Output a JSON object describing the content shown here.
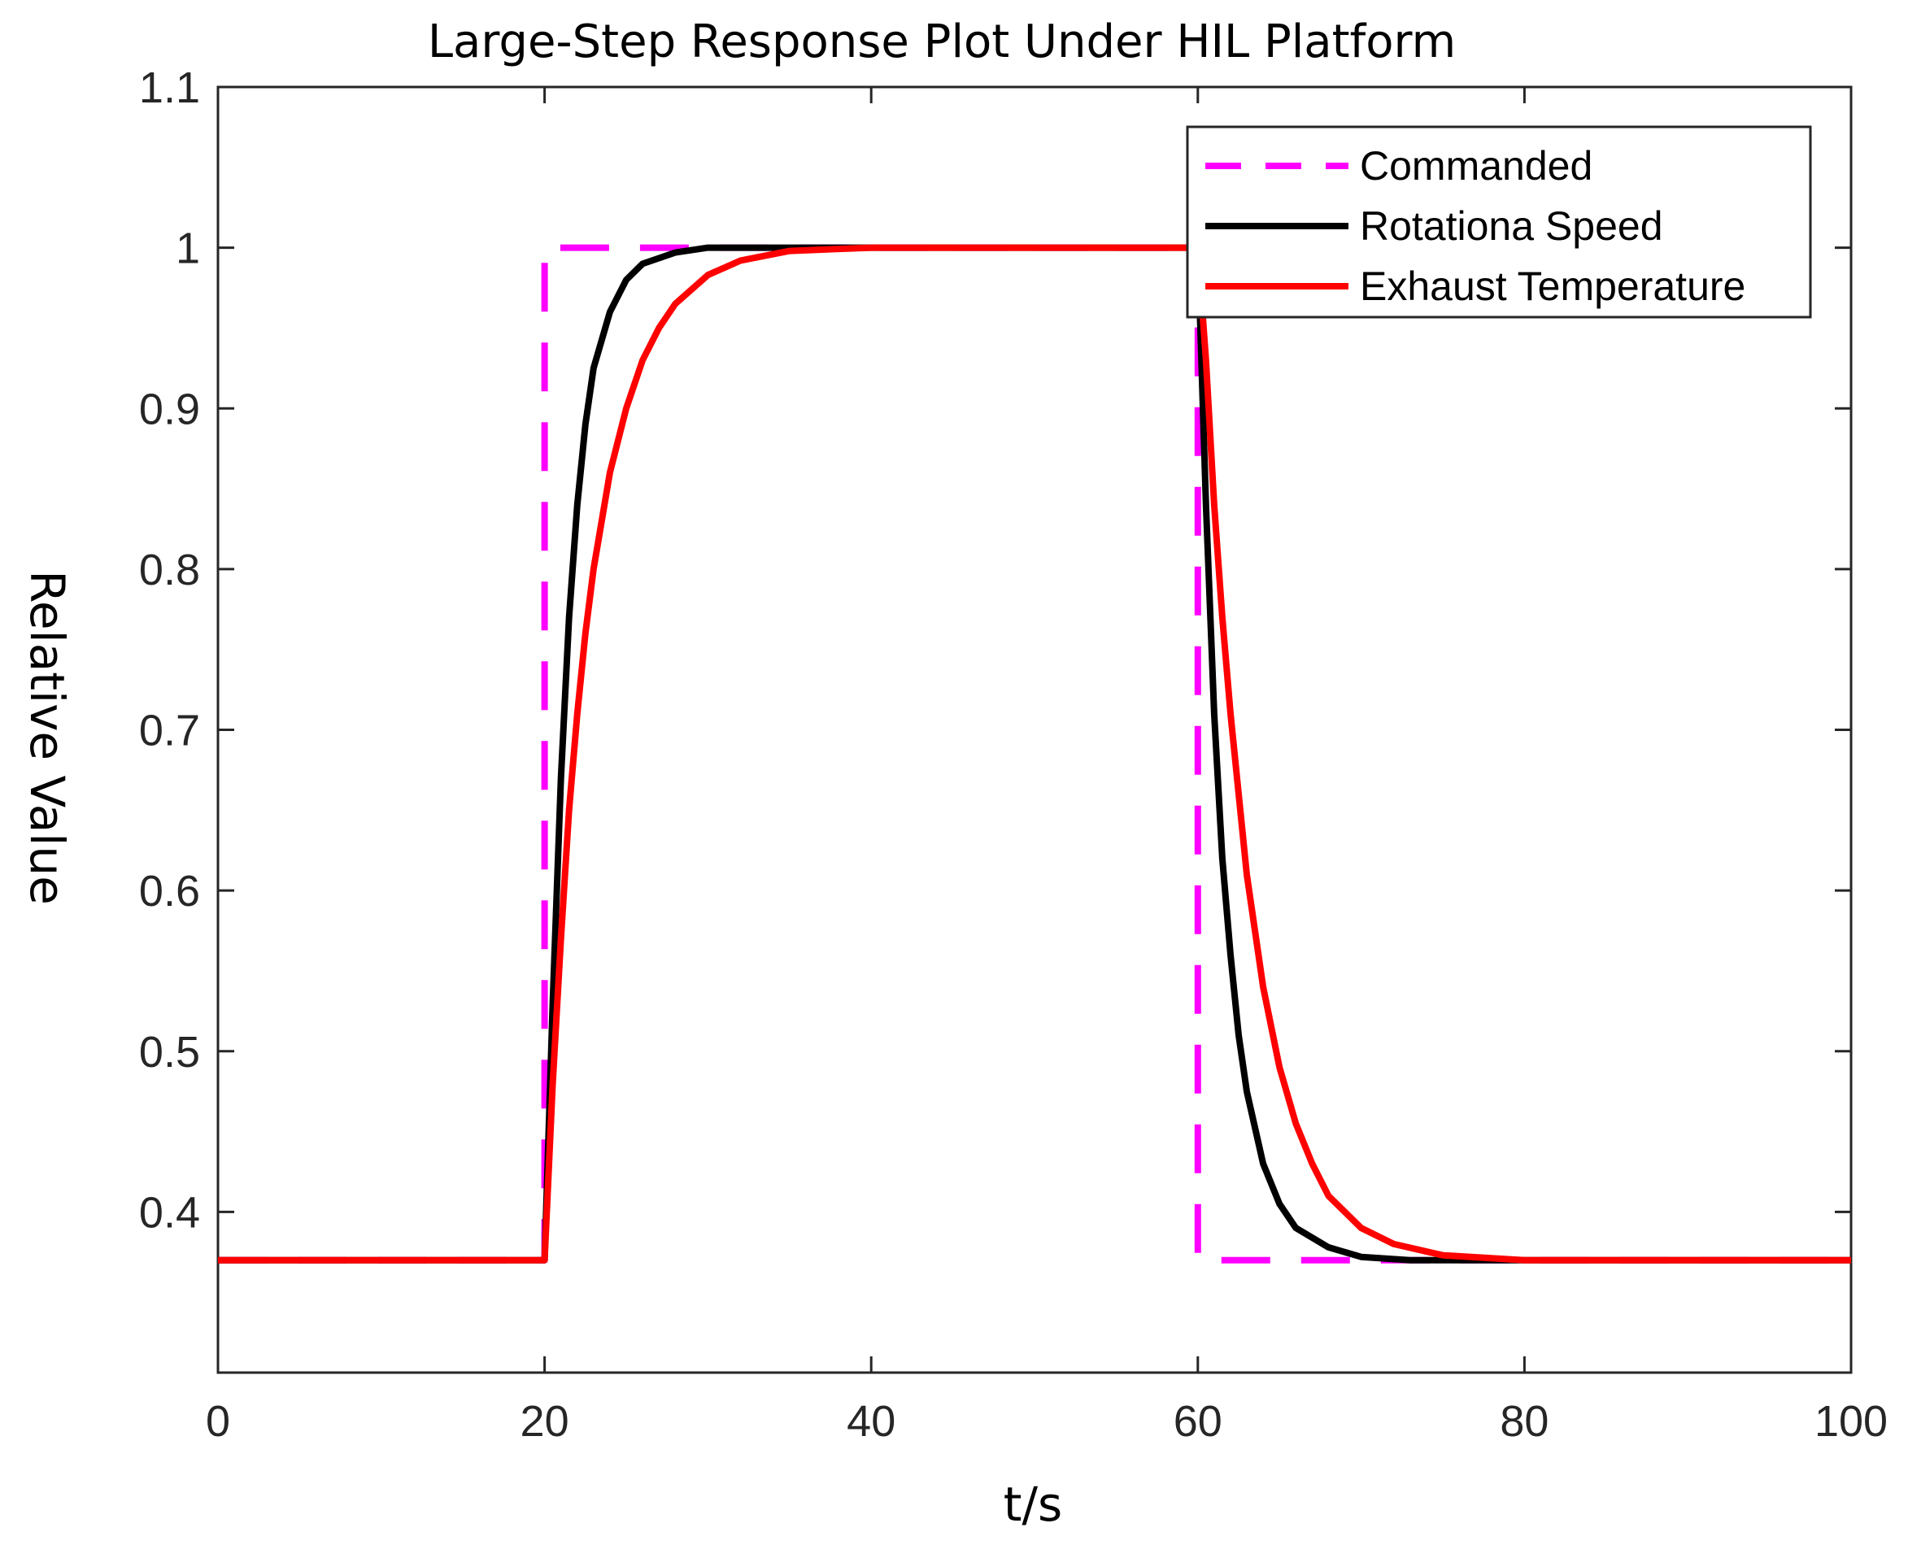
{
  "chart_data": {
    "type": "line",
    "title": "Large-Step Response Plot Under HIL Platform",
    "xlabel": "t/s",
    "ylabel": "Relative Value",
    "xlim": [
      0,
      100
    ],
    "ylim": [
      0.3,
      1.1
    ],
    "x_ticks": [
      "0",
      "20",
      "40",
      "60",
      "80",
      "100"
    ],
    "y_ticks": [
      "0.4",
      "0.5",
      "0.6",
      "0.7",
      "0.8",
      "0.9",
      "1",
      "1.1"
    ],
    "grid": false,
    "legend_position": "top-right",
    "series": [
      {
        "name": "Commanded",
        "style": "dashed",
        "color": "#ff00ff",
        "x": [
          0,
          20,
          20,
          60,
          60,
          100
        ],
        "y": [
          0.37,
          0.37,
          1.0,
          1.0,
          0.37,
          0.37
        ]
      },
      {
        "name": "Rotationa Speed",
        "style": "solid",
        "color": "#000000",
        "x": [
          0,
          20,
          20.5,
          21,
          21.5,
          22,
          22.5,
          23,
          24,
          25,
          26,
          28,
          30,
          33,
          40,
          50,
          60,
          60.5,
          61,
          61.5,
          62,
          62.5,
          63,
          64,
          65,
          66,
          68,
          70,
          73,
          80,
          100
        ],
        "y": [
          0.37,
          0.37,
          0.53,
          0.67,
          0.77,
          0.84,
          0.89,
          0.925,
          0.96,
          0.98,
          0.99,
          0.997,
          1.0,
          1.0,
          1.0,
          1.0,
          1.0,
          0.84,
          0.71,
          0.62,
          0.56,
          0.51,
          0.475,
          0.43,
          0.405,
          0.39,
          0.378,
          0.372,
          0.37,
          0.37,
          0.37
        ]
      },
      {
        "name": "Exhaust Temperature",
        "style": "solid",
        "color": "#ff0000",
        "x": [
          0,
          20,
          20.5,
          21,
          21.5,
          22,
          22.5,
          23,
          24,
          25,
          26,
          27,
          28,
          30,
          32,
          35,
          40,
          50,
          60,
          60.5,
          61,
          61.5,
          62,
          62.5,
          63,
          64,
          65,
          66,
          67,
          68,
          70,
          72,
          75,
          80,
          100
        ],
        "y": [
          0.37,
          0.37,
          0.48,
          0.57,
          0.65,
          0.71,
          0.76,
          0.8,
          0.86,
          0.9,
          0.93,
          0.95,
          0.965,
          0.983,
          0.992,
          0.998,
          1.0,
          1.0,
          1.0,
          0.93,
          0.84,
          0.77,
          0.71,
          0.66,
          0.61,
          0.54,
          0.49,
          0.455,
          0.43,
          0.41,
          0.39,
          0.38,
          0.373,
          0.37,
          0.37
        ]
      }
    ]
  }
}
